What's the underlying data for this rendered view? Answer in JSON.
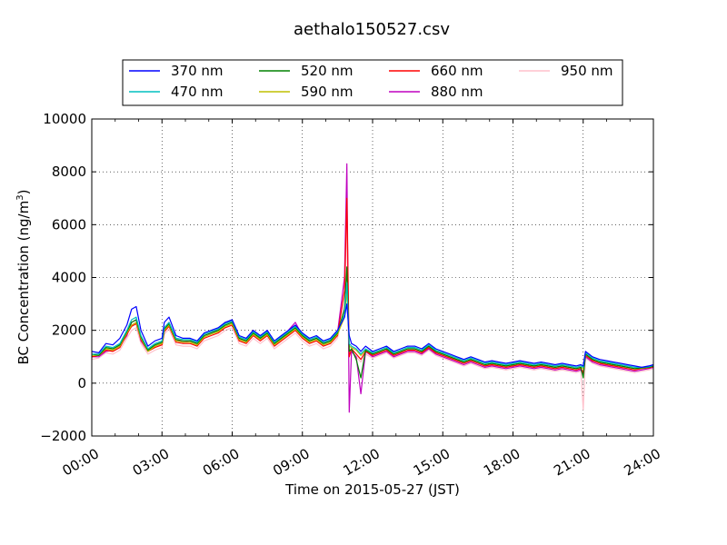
{
  "chart_data": {
    "type": "line",
    "title": "aethalo150527.csv",
    "xlabel": "Time on 2015-05-27 (JST)",
    "ylabel": "BC Concentration (ng/m",
    "ylabel_sup": "3",
    "ylabel_suffix": ")",
    "xlim": [
      0,
      24
    ],
    "ylim": [
      -2000,
      10000
    ],
    "grid": true,
    "legend_position": "top",
    "x_tick_values": [
      0,
      3,
      6,
      9,
      12,
      15,
      18,
      21,
      24
    ],
    "x_tick_labels": [
      "00:00",
      "03:00",
      "06:00",
      "09:00",
      "12:00",
      "15:00",
      "18:00",
      "21:00",
      "24:00"
    ],
    "y_tick_values": [
      -2000,
      0,
      2000,
      4000,
      6000,
      8000,
      10000
    ],
    "y_tick_labels": [
      "−2000",
      "0",
      "2000",
      "4000",
      "6000",
      "8000",
      "10000"
    ],
    "x": [
      0.0,
      0.3,
      0.6,
      0.9,
      1.2,
      1.5,
      1.7,
      1.9,
      2.1,
      2.4,
      2.7,
      3.0,
      3.1,
      3.3,
      3.6,
      3.9,
      4.2,
      4.5,
      4.8,
      5.1,
      5.4,
      5.7,
      6.0,
      6.3,
      6.6,
      6.9,
      7.2,
      7.5,
      7.8,
      8.1,
      8.4,
      8.7,
      9.0,
      9.3,
      9.6,
      9.9,
      10.2,
      10.5,
      10.8,
      10.9,
      11.0,
      11.1,
      11.3,
      11.5,
      11.7,
      12.0,
      12.3,
      12.6,
      12.9,
      13.2,
      13.5,
      13.8,
      14.1,
      14.4,
      14.7,
      15.0,
      15.3,
      15.6,
      15.9,
      16.2,
      16.5,
      16.8,
      17.1,
      17.4,
      17.7,
      18.0,
      18.3,
      18.6,
      18.9,
      19.2,
      19.5,
      19.8,
      20.1,
      20.4,
      20.7,
      20.9,
      21.0,
      21.1,
      21.4,
      21.7,
      22.0,
      22.3,
      22.6,
      22.9,
      23.2,
      23.5,
      23.8,
      24.0
    ],
    "series": [
      {
        "name": "370 nm",
        "color": "#0000ff",
        "values": [
          1200,
          1150,
          1500,
          1450,
          1700,
          2200,
          2800,
          2900,
          2000,
          1400,
          1600,
          1700,
          2300,
          2500,
          1800,
          1700,
          1700,
          1600,
          1900,
          2000,
          2100,
          2300,
          2400,
          1800,
          1700,
          2000,
          1800,
          2000,
          1600,
          1800,
          2000,
          2200,
          1900,
          1700,
          1800,
          1600,
          1700,
          2000,
          2500,
          3000,
          1800,
          1500,
          1400,
          1200,
          1400,
          1200,
          1300,
          1400,
          1200,
          1300,
          1400,
          1400,
          1300,
          1500,
          1300,
          1200,
          1100,
          1000,
          900,
          1000,
          900,
          800,
          850,
          800,
          750,
          800,
          850,
          800,
          750,
          800,
          750,
          700,
          750,
          700,
          650,
          700,
          650,
          1200,
          1000,
          900,
          850,
          800,
          750,
          700,
          650,
          600,
          650,
          700
        ]
      },
      {
        "name": "470 nm",
        "color": "#00bfbf",
        "values": [
          1100,
          1100,
          1400,
          1350,
          1500,
          2000,
          2400,
          2500,
          1800,
          1300,
          1500,
          1600,
          2100,
          2300,
          1700,
          1650,
          1650,
          1550,
          1850,
          1950,
          2050,
          2250,
          2350,
          1750,
          1650,
          1950,
          1750,
          1950,
          1550,
          1750,
          1950,
          2150,
          1850,
          1650,
          1750,
          1550,
          1650,
          1950,
          2600,
          3800,
          1500,
          1400,
          1300,
          1100,
          1300,
          1150,
          1250,
          1350,
          1150,
          1250,
          1350,
          1350,
          1250,
          1450,
          1250,
          1150,
          1050,
          950,
          850,
          950,
          850,
          750,
          800,
          750,
          700,
          750,
          800,
          750,
          700,
          750,
          700,
          650,
          700,
          650,
          600,
          650,
          600,
          1150,
          950,
          850,
          800,
          750,
          700,
          650,
          600,
          600,
          620,
          680
        ]
      },
      {
        "name": "520 nm",
        "color": "#008000",
        "values": [
          1100,
          1050,
          1350,
          1300,
          1450,
          1950,
          2300,
          2400,
          1750,
          1250,
          1450,
          1550,
          2050,
          2250,
          1650,
          1600,
          1600,
          1500,
          1800,
          1900,
          2000,
          2200,
          2300,
          1700,
          1600,
          1900,
          1700,
          1900,
          1500,
          1700,
          1900,
          2100,
          1800,
          1600,
          1700,
          1500,
          1600,
          1900,
          2800,
          4400,
          1200,
          1300,
          900,
          200,
          1250,
          1100,
          1200,
          1300,
          1100,
          1200,
          1300,
          1300,
          1200,
          1400,
          1200,
          1100,
          1000,
          900,
          800,
          900,
          800,
          700,
          750,
          700,
          650,
          700,
          750,
          700,
          650,
          700,
          650,
          600,
          650,
          600,
          550,
          600,
          200,
          1100,
          900,
          800,
          750,
          700,
          650,
          600,
          550,
          580,
          600,
          650
        ]
      },
      {
        "name": "590 nm",
        "color": "#bfbf00",
        "values": [
          1050,
          1050,
          1300,
          1250,
          1400,
          1900,
          2200,
          2300,
          1700,
          1200,
          1400,
          1500,
          2000,
          2200,
          1600,
          1550,
          1550,
          1450,
          1750,
          1850,
          1950,
          2150,
          2250,
          1650,
          1550,
          1850,
          1650,
          1850,
          1450,
          1650,
          1850,
          2050,
          1750,
          1550,
          1650,
          1450,
          1550,
          1850,
          2500,
          3500,
          1400,
          1350,
          1250,
          1050,
          1250,
          1100,
          1200,
          1300,
          1100,
          1200,
          1300,
          1300,
          1200,
          1400,
          1200,
          1100,
          1000,
          900,
          800,
          900,
          800,
          700,
          750,
          700,
          650,
          700,
          750,
          700,
          650,
          700,
          650,
          600,
          650,
          600,
          550,
          600,
          550,
          1100,
          900,
          800,
          750,
          700,
          650,
          600,
          550,
          560,
          600,
          650
        ]
      },
      {
        "name": "660 nm",
        "color": "#ff0000",
        "values": [
          1000,
          1050,
          1250,
          1200,
          1350,
          1850,
          2150,
          2250,
          1650,
          1200,
          1350,
          1450,
          1950,
          2150,
          1550,
          1500,
          1500,
          1400,
          1700,
          1800,
          1900,
          2100,
          2200,
          1600,
          1500,
          1800,
          1600,
          1800,
          1400,
          1600,
          1800,
          2000,
          1700,
          1500,
          1600,
          1400,
          1500,
          1800,
          3500,
          7000,
          1000,
          1300,
          1100,
          900,
          1200,
          1050,
          1150,
          1250,
          1050,
          1150,
          1250,
          1250,
          1150,
          1350,
          1150,
          1050,
          950,
          850,
          750,
          850,
          750,
          650,
          700,
          650,
          600,
          650,
          700,
          650,
          600,
          650,
          600,
          550,
          600,
          550,
          500,
          550,
          400,
          1050,
          850,
          750,
          700,
          650,
          600,
          550,
          500,
          550,
          580,
          620
        ]
      },
      {
        "name": "880 nm",
        "color": "#bf00bf",
        "values": [
          1000,
          1000,
          1200,
          1250,
          1400,
          1800,
          2300,
          2400,
          1600,
          1200,
          1400,
          1500,
          2100,
          2300,
          1650,
          1550,
          1600,
          1500,
          1800,
          1900,
          2050,
          2300,
          2350,
          1700,
          1600,
          2000,
          1700,
          2000,
          1500,
          1700,
          2000,
          2300,
          1800,
          1600,
          1700,
          1500,
          1600,
          1900,
          4000,
          8300,
          -1100,
          1200,
          1000,
          -400,
          1200,
          1000,
          1100,
          1200,
          1000,
          1100,
          1200,
          1200,
          1100,
          1300,
          1100,
          1000,
          900,
          800,
          700,
          800,
          700,
          600,
          650,
          600,
          550,
          600,
          650,
          600,
          550,
          600,
          550,
          500,
          550,
          500,
          450,
          500,
          300,
          1000,
          800,
          700,
          650,
          600,
          550,
          500,
          450,
          500,
          550,
          600
        ]
      },
      {
        "name": "950 nm",
        "color": "#ffc0cb",
        "values": [
          900,
          950,
          1150,
          1100,
          1250,
          1700,
          2000,
          2100,
          1500,
          1100,
          1250,
          1350,
          1850,
          2050,
          1450,
          1400,
          1400,
          1300,
          1600,
          1700,
          1800,
          2000,
          2100,
          1500,
          1400,
          1700,
          1500,
          1700,
          1300,
          1500,
          1700,
          1900,
          1600,
          1400,
          1500,
          1300,
          1400,
          1700,
          3000,
          6000,
          1100,
          1200,
          1000,
          800,
          1100,
          950,
          1050,
          1150,
          950,
          1050,
          1150,
          1150,
          1050,
          1250,
          1050,
          950,
          850,
          750,
          650,
          750,
          650,
          550,
          600,
          550,
          500,
          550,
          600,
          550,
          500,
          550,
          500,
          450,
          500,
          450,
          400,
          450,
          -1000,
          950,
          750,
          650,
          600,
          550,
          500,
          450,
          400,
          450,
          500,
          550
        ]
      }
    ]
  }
}
